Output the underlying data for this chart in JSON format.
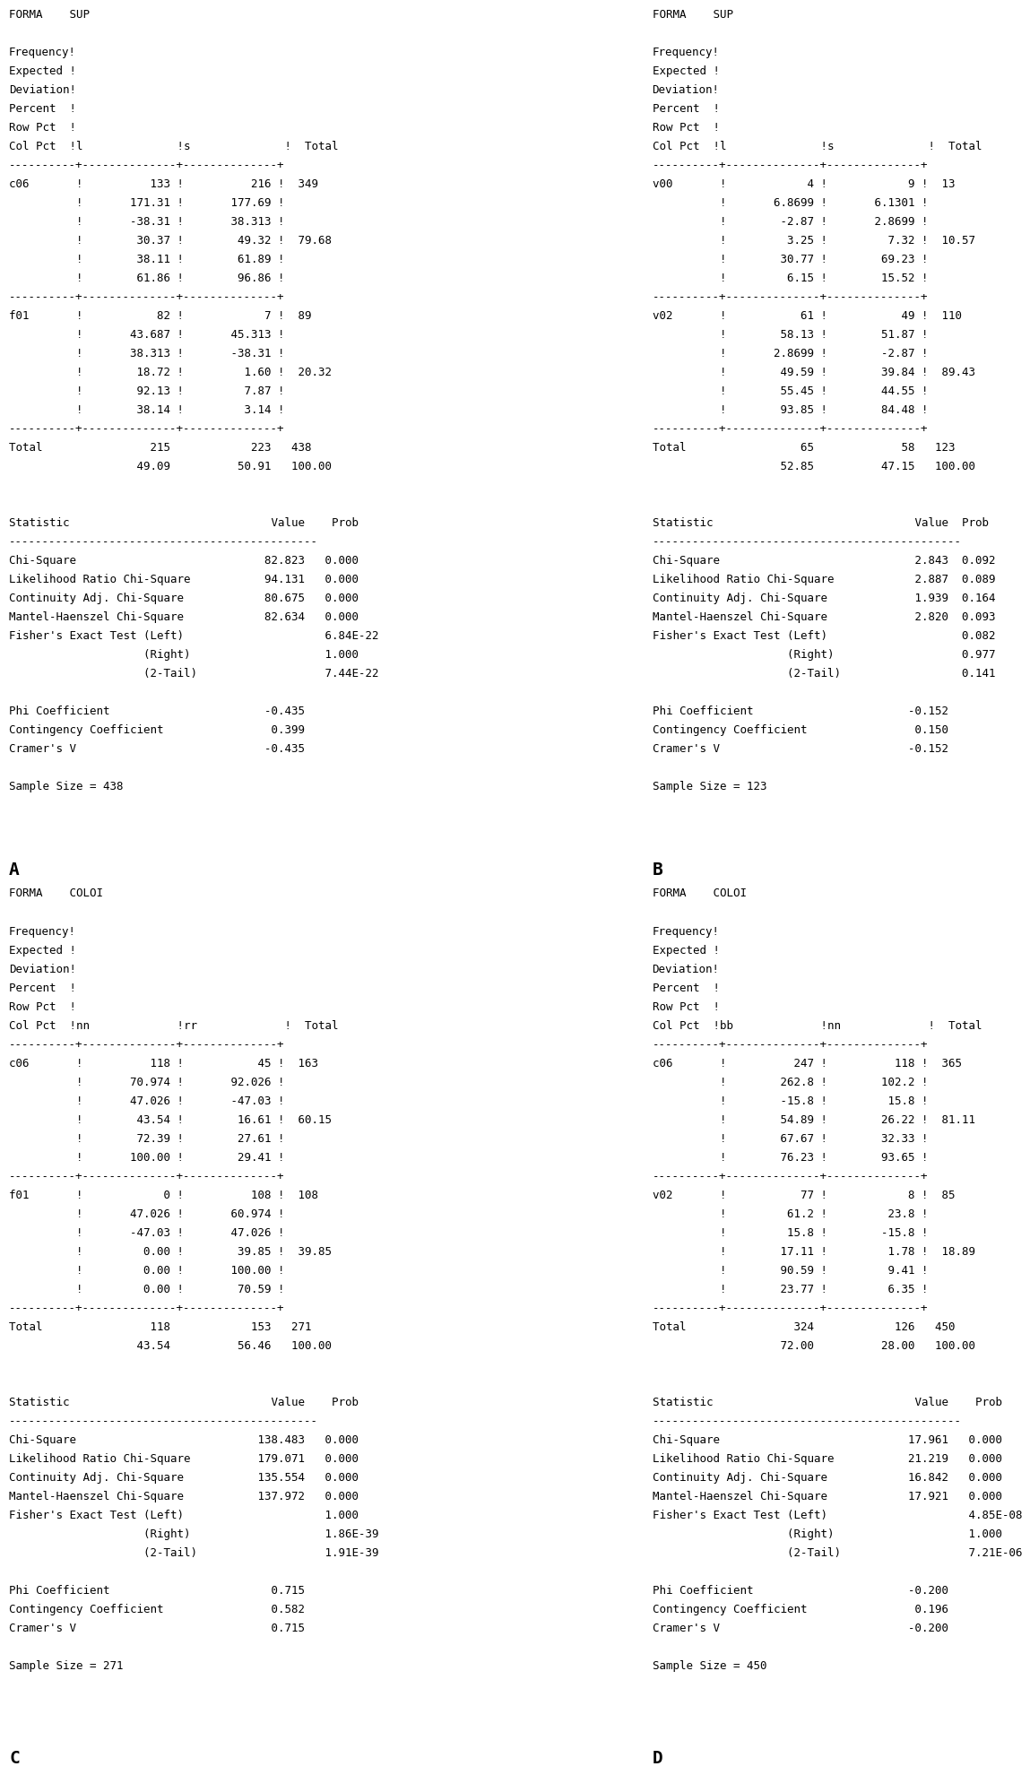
{
  "panels": {
    "A": {
      "title": "FORMA    SUP",
      "col_header": "Col Pct  !l              !s              !  Total",
      "col_vars": [
        "l",
        "s"
      ],
      "rows": [
        {
          "label": "c06",
          "col1": [
            "133",
            "171.31",
            "-38.31",
            "30.37",
            "38.11",
            "61.86"
          ],
          "col2": [
            "216",
            "177.69",
            "38.313",
            "49.32",
            "61.89",
            "96.86"
          ],
          "total_freq": "349",
          "total_pct": "79.68"
        },
        {
          "label": "f01",
          "col1": [
            "82",
            "43.687",
            "38.313",
            "18.72",
            "92.13",
            "38.14"
          ],
          "col2": [
            "7",
            "45.313",
            "-38.31",
            "1.60",
            "7.87",
            "3.14"
          ],
          "total_freq": "89",
          "total_pct": "20.32"
        }
      ],
      "total_row": [
        "215",
        "223",
        "438",
        "49.09",
        "50.91",
        "100.00"
      ],
      "stat_lines": [
        "Statistic                              Value    Prob",
        "----------------------------------------------",
        "Chi-Square                            82.823   0.000",
        "Likelihood Ratio Chi-Square           94.131   0.000",
        "Continuity Adj. Chi-Square            80.675   0.000",
        "Mantel-Haenszel Chi-Square            82.634   0.000",
        "Fisher's Exact Test (Left)                     6.84E-22",
        "                    (Right)                    1.000",
        "                    (2-Tail)                   7.44E-22",
        "",
        "Phi Coefficient                       -0.435",
        "Contingency Coefficient                0.399",
        "Cramer's V                            -0.435",
        "",
        "Sample Size = 438"
      ]
    },
    "B": {
      "title": "FORMA    SUP",
      "col_header": "Col Pct  !l              !s              !  Total",
      "col_vars": [
        "l",
        "s"
      ],
      "rows": [
        {
          "label": "v00",
          "col1": [
            "4",
            "6.8699",
            "-2.87",
            "3.25",
            "30.77",
            "6.15"
          ],
          "col2": [
            "9",
            "6.1301",
            "2.8699",
            "7.32",
            "69.23",
            "15.52"
          ],
          "total_freq": "13",
          "total_pct": "10.57"
        },
        {
          "label": "v02",
          "col1": [
            "61",
            "58.13",
            "2.8699",
            "49.59",
            "55.45",
            "93.85"
          ],
          "col2": [
            "49",
            "51.87",
            "-2.87",
            "39.84",
            "44.55",
            "84.48"
          ],
          "total_freq": "110",
          "total_pct": "89.43"
        }
      ],
      "total_row": [
        "65",
        "58",
        "123",
        "52.85",
        "47.15",
        "100.00"
      ],
      "stat_lines": [
        "Statistic                              Value  Prob",
        "----------------------------------------------",
        "Chi-Square                             2.843  0.092",
        "Likelihood Ratio Chi-Square            2.887  0.089",
        "Continuity Adj. Chi-Square             1.939  0.164",
        "Mantel-Haenszel Chi-Square             2.820  0.093",
        "Fisher's Exact Test (Left)                    0.082",
        "                    (Right)                   0.977",
        "                    (2-Tail)                  0.141",
        "",
        "Phi Coefficient                       -0.152",
        "Contingency Coefficient                0.150",
        "Cramer's V                            -0.152",
        "",
        "Sample Size = 123"
      ]
    },
    "C": {
      "title": "FORMA    COLOI",
      "col_header": "Col Pct  !nn             !rr             !  Total",
      "col_vars": [
        "nn",
        "rr"
      ],
      "rows": [
        {
          "label": "c06",
          "col1": [
            "118",
            "70.974",
            "47.026",
            "43.54",
            "72.39",
            "100.00"
          ],
          "col2": [
            "45",
            "92.026",
            "-47.03",
            "16.61",
            "27.61",
            "29.41"
          ],
          "total_freq": "163",
          "total_pct": "60.15"
        },
        {
          "label": "f01",
          "col1": [
            "0",
            "47.026",
            "-47.03",
            "0.00",
            "0.00",
            "0.00"
          ],
          "col2": [
            "108",
            "60.974",
            "47.026",
            "39.85",
            "100.00",
            "70.59"
          ],
          "total_freq": "108",
          "total_pct": "39.85"
        }
      ],
      "total_row": [
        "118",
        "153",
        "271",
        "43.54",
        "56.46",
        "100.00"
      ],
      "stat_lines": [
        "Statistic                              Value    Prob",
        "----------------------------------------------",
        "Chi-Square                           138.483   0.000",
        "Likelihood Ratio Chi-Square          179.071   0.000",
        "Continuity Adj. Chi-Square           135.554   0.000",
        "Mantel-Haenszel Chi-Square           137.972   0.000",
        "Fisher's Exact Test (Left)                     1.000",
        "                    (Right)                    1.86E-39",
        "                    (2-Tail)                   1.91E-39",
        "",
        "Phi Coefficient                        0.715",
        "Contingency Coefficient                0.582",
        "Cramer's V                             0.715",
        "",
        "Sample Size = 271"
      ]
    },
    "D": {
      "title": "FORMA    COLOI",
      "col_header": "Col Pct  !bb             !nn             !  Total",
      "col_vars": [
        "bb",
        "nn"
      ],
      "rows": [
        {
          "label": "c06",
          "col1": [
            "247",
            "262.8",
            "-15.8",
            "54.89",
            "67.67",
            "76.23"
          ],
          "col2": [
            "118",
            "102.2",
            "15.8",
            "26.22",
            "32.33",
            "93.65"
          ],
          "total_freq": "365",
          "total_pct": "81.11"
        },
        {
          "label": "v02",
          "col1": [
            "77",
            "61.2",
            "15.8",
            "17.11",
            "90.59",
            "23.77"
          ],
          "col2": [
            "8",
            "23.8",
            "-15.8",
            "1.78",
            "9.41",
            "6.35"
          ],
          "total_freq": "85",
          "total_pct": "18.89"
        }
      ],
      "total_row": [
        "324",
        "126",
        "450",
        "72.00",
        "28.00",
        "100.00"
      ],
      "stat_lines": [
        "Statistic                              Value    Prob",
        "----------------------------------------------",
        "Chi-Square                            17.961   0.000",
        "Likelihood Ratio Chi-Square           21.219   0.000",
        "Continuity Adj. Chi-Square            16.842   0.000",
        "Mantel-Haenszel Chi-Square            17.921   0.000",
        "Fisher's Exact Test (Left)                     4.85E-08",
        "                    (Right)                    1.000",
        "                    (2-Tail)                   7.21E-06",
        "",
        "Phi Coefficient                       -0.200",
        "Contingency Coefficient                0.196",
        "Cramer's V                            -0.200",
        "",
        "Sample Size = 450"
      ]
    }
  },
  "font_size": 9.0,
  "label_font_size": 14,
  "mono_font": "monospace"
}
